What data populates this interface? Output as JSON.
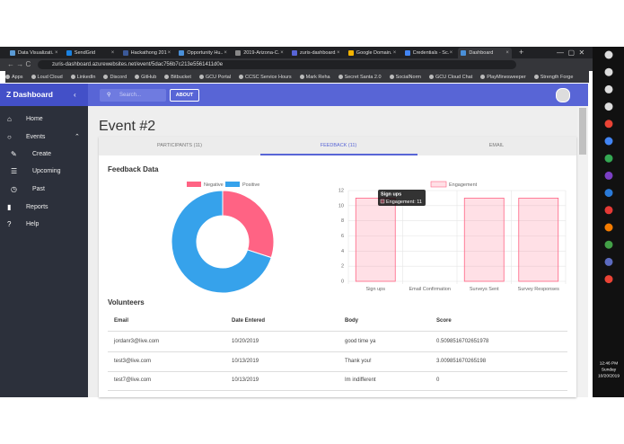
{
  "browser": {
    "tabs": [
      "Data Visualizati...",
      "SendGrid",
      "Hackathong 201...",
      "Opportunity Hu...",
      "2019-Arizona-C...",
      "zuris-dashboard...",
      "Google Domain...",
      "Credentials - Sc...",
      "Dashboard"
    ],
    "url": "zuris-dashboard.azurewebsites.net/event/5dac756b7c213e5561411d0e",
    "bookmarks": [
      "Apps",
      "Loud Cloud",
      "LinkedIn",
      "Discord",
      "GitHub",
      "Bitbucket",
      "GCU Portal",
      "CCSC Service Hours",
      "Mark Reha",
      "Secret Santa 2.0",
      "SocialNorm",
      "GCU Cloud Chat",
      "PlayMinesweeper",
      "Strength Forge"
    ]
  },
  "app": {
    "brand": "Z Dashboard",
    "search": "Search...",
    "about": "ABOUT",
    "nav": [
      "Home",
      "Events",
      "Create",
      "Upcoming",
      "Past",
      "Reports",
      "Help"
    ]
  },
  "page": {
    "title": "Event #2",
    "tabs": [
      "PARTICIPANTS (11)",
      "FEEDBACK (11)",
      "EMAIL"
    ],
    "feedback_title": "Feedback Data",
    "volunteers_title": "Volunteers",
    "table": {
      "columns": [
        "Email",
        "Date Entered",
        "Body",
        "Score"
      ],
      "rows": [
        [
          "jordanr3@live.com",
          "10/20/2019",
          "good time ya",
          "0.5098516702651978"
        ],
        [
          "test3@live.com",
          "10/13/2019",
          "Thank you!",
          "3.009851670265198"
        ],
        [
          "test7@live.com",
          "10/13/2019",
          "Im indifferent",
          "0"
        ]
      ]
    }
  },
  "chart_data": [
    {
      "type": "pie",
      "categories": [
        "Negative",
        "Positive"
      ],
      "values": [
        30,
        70
      ],
      "colors": [
        "#ff6384",
        "#36a2eb"
      ],
      "donut": true
    },
    {
      "type": "bar",
      "categories": [
        "Sign ups",
        "Email Confirmation",
        "Surveys Sent",
        "Survey Responses"
      ],
      "series": [
        {
          "name": "Engagement",
          "color": "#ff6384",
          "values": [
            11,
            0,
            11,
            11
          ]
        }
      ],
      "ylim": [
        0,
        12
      ],
      "yticks": [
        0,
        2,
        4,
        6,
        8,
        10,
        12
      ],
      "grid": true,
      "tooltip": {
        "title": "Sign ups",
        "label": "Engagement: 11"
      }
    }
  ],
  "taskbar": {
    "time": "12:46 PM",
    "day": "Sunday",
    "date": "10/20/2019"
  }
}
